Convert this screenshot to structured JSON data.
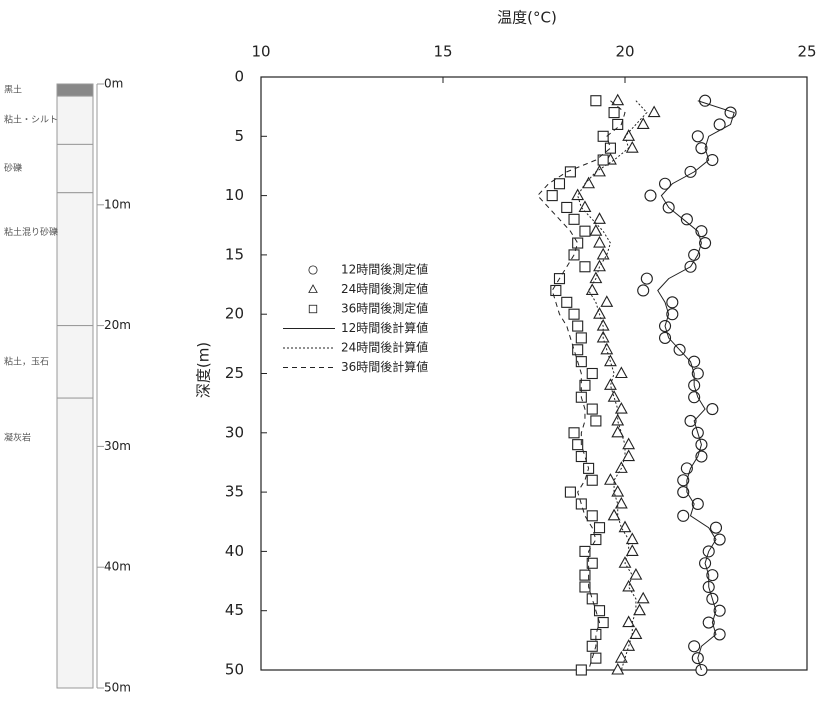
{
  "chart_data": {
    "type": "scatter",
    "x_label": "温度(°C)",
    "y_label": "深度(m)",
    "xlim": [
      10,
      25
    ],
    "xticks": [
      10,
      15,
      20,
      25
    ],
    "x_axis_position": "top",
    "ylim": [
      0,
      50
    ],
    "yticks": [
      0,
      5,
      10,
      15,
      20,
      25,
      30,
      35,
      40,
      45,
      50
    ],
    "y_reversed": true,
    "legend": "upper-left",
    "depths": [
      2,
      3,
      4,
      5,
      6,
      7,
      8,
      9,
      10,
      11,
      12,
      13,
      14,
      15,
      16,
      17,
      18,
      19,
      20,
      21,
      22,
      23,
      24,
      25,
      26,
      27,
      28,
      29,
      30,
      31,
      32,
      33,
      34,
      35,
      36,
      37,
      38,
      39,
      40,
      41,
      42,
      43,
      44,
      45,
      46,
      47,
      48,
      49,
      50
    ],
    "series": [
      {
        "name": "12時間後測定値",
        "type": "scatter",
        "marker": "circle",
        "color": "#222",
        "values": [
          22.2,
          22.9,
          22.6,
          22.0,
          22.1,
          22.4,
          21.8,
          21.1,
          20.7,
          21.2,
          21.7,
          22.1,
          22.2,
          21.9,
          21.8,
          20.6,
          20.5,
          21.3,
          21.3,
          21.1,
          21.1,
          21.5,
          21.9,
          22.0,
          21.9,
          21.9,
          22.4,
          21.8,
          22.0,
          22.1,
          22.1,
          21.7,
          21.6,
          21.6,
          22.0,
          21.6,
          22.5,
          22.6,
          22.3,
          22.2,
          22.4,
          22.3,
          22.4,
          22.6,
          22.3,
          22.6,
          21.9,
          22.0,
          22.1
        ]
      },
      {
        "name": "24時間後測定値",
        "type": "scatter",
        "marker": "triangle",
        "color": "#222",
        "values": [
          19.8,
          20.8,
          20.5,
          20.1,
          20.2,
          19.6,
          19.3,
          19.0,
          18.7,
          18.9,
          19.3,
          19.2,
          19.3,
          19.4,
          19.3,
          19.2,
          19.1,
          19.5,
          19.3,
          19.4,
          19.4,
          19.5,
          19.6,
          19.9,
          19.6,
          19.7,
          19.9,
          19.8,
          19.8,
          20.1,
          20.1,
          19.9,
          19.6,
          19.8,
          19.9,
          19.7,
          20.0,
          20.2,
          20.2,
          20.0,
          20.3,
          20.1,
          20.5,
          20.4,
          20.1,
          20.3,
          20.1,
          19.9,
          19.8
        ]
      },
      {
        "name": "36時間後測定値",
        "type": "scatter",
        "marker": "square",
        "color": "#222",
        "values": [
          19.2,
          19.7,
          19.8,
          19.4,
          19.6,
          19.4,
          18.5,
          18.2,
          18.0,
          18.4,
          18.6,
          18.9,
          18.7,
          18.6,
          18.9,
          18.2,
          18.1,
          18.4,
          18.6,
          18.7,
          18.8,
          18.7,
          18.8,
          19.1,
          18.9,
          18.8,
          19.1,
          19.2,
          18.6,
          18.7,
          18.8,
          19.0,
          19.1,
          18.5,
          18.8,
          19.1,
          19.3,
          19.2,
          18.9,
          19.1,
          18.9,
          18.9,
          19.1,
          19.3,
          19.4,
          19.2,
          19.1,
          19.2,
          18.8
        ]
      },
      {
        "name": "12時間後計算値",
        "type": "line",
        "dash": "solid",
        "color": "#222",
        "values": [
          22.0,
          23.0,
          22.9,
          22.3,
          22.2,
          22.3,
          21.9,
          21.3,
          21.0,
          21.2,
          21.6,
          22.0,
          22.1,
          22.0,
          21.8,
          21.2,
          20.9,
          21.1,
          21.2,
          21.1,
          21.2,
          21.5,
          21.8,
          21.9,
          21.9,
          22.0,
          22.2,
          21.9,
          22.0,
          22.1,
          22.0,
          21.8,
          21.7,
          21.7,
          21.9,
          21.8,
          22.3,
          22.5,
          22.3,
          22.2,
          22.3,
          22.3,
          22.4,
          22.5,
          22.4,
          22.5,
          22.1,
          22.0,
          22.1
        ]
      },
      {
        "name": "24時間後計算値",
        "type": "line",
        "dash": "dotted",
        "color": "#222",
        "values": [
          20.3,
          20.6,
          20.3,
          20.0,
          20.1,
          19.7,
          19.2,
          18.9,
          18.7,
          18.8,
          19.1,
          19.4,
          19.6,
          19.5,
          19.3,
          19.2,
          19.0,
          19.2,
          19.3,
          19.4,
          19.4,
          19.5,
          19.6,
          19.7,
          19.6,
          19.7,
          19.8,
          19.8,
          19.9,
          20.0,
          20.0,
          19.9,
          19.7,
          19.7,
          19.8,
          19.8,
          19.9,
          20.1,
          20.1,
          20.0,
          20.2,
          20.1,
          20.3,
          20.3,
          20.2,
          20.2,
          20.1,
          20.0,
          19.9
        ]
      },
      {
        "name": "36時間後計算値",
        "type": "line",
        "dash": "dashed",
        "color": "#222",
        "values": [
          19.6,
          20.0,
          19.9,
          19.5,
          19.6,
          19.2,
          18.4,
          17.9,
          17.6,
          17.9,
          18.2,
          18.5,
          18.7,
          18.6,
          18.4,
          18.2,
          18.0,
          18.1,
          18.2,
          18.4,
          18.5,
          18.6,
          18.7,
          18.8,
          18.8,
          18.8,
          18.9,
          18.9,
          18.8,
          18.8,
          18.9,
          19.0,
          18.9,
          18.7,
          18.8,
          18.9,
          19.1,
          19.2,
          19.0,
          19.0,
          19.0,
          19.0,
          19.1,
          19.2,
          19.3,
          19.2,
          19.2,
          19.1,
          19.0
        ]
      }
    ]
  },
  "borehole": {
    "ylim": [
      0,
      50
    ],
    "ticks": [
      {
        "value": 0,
        "label": "0m"
      },
      {
        "value": 10,
        "label": "10m"
      },
      {
        "value": 20,
        "label": "20m"
      },
      {
        "value": 30,
        "label": "30m"
      },
      {
        "value": 40,
        "label": "40m"
      },
      {
        "value": 50,
        "label": "50m"
      }
    ],
    "layers": [
      {
        "name": "黒土",
        "top": 0,
        "bottom": 1
      },
      {
        "name": "粘土・シルト",
        "top": 1,
        "bottom": 5
      },
      {
        "name": "砂礫",
        "top": 5,
        "bottom": 9
      },
      {
        "name": "粘土混り砂礫",
        "top": 9,
        "bottom": 20
      },
      {
        "name": "粘土，玉石",
        "top": 20,
        "bottom": 26
      },
      {
        "name": "凝灰岩",
        "top": 26,
        "bottom": 50
      }
    ]
  }
}
